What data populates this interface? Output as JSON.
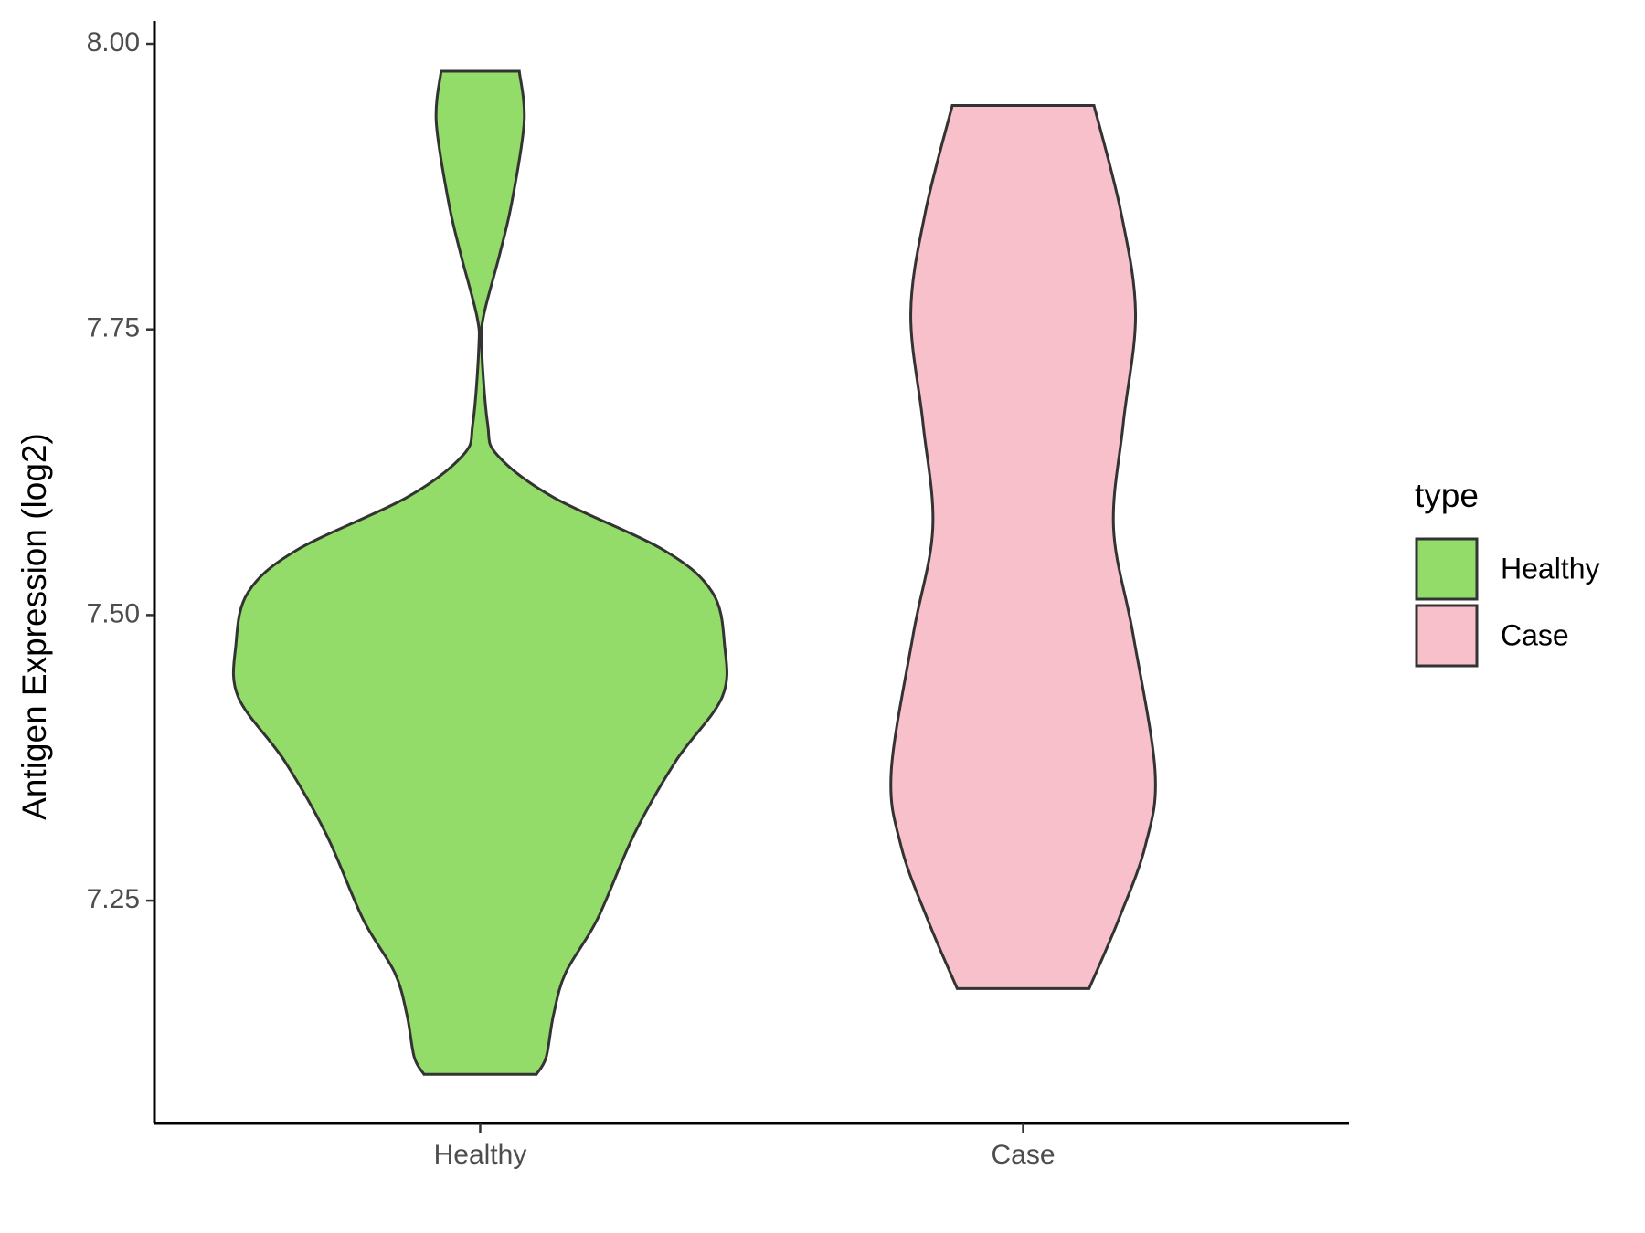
{
  "chart_data": {
    "type": "violin",
    "y_label": "Antigen Expression (log2)",
    "categories": [
      "Healthy",
      "Case"
    ],
    "legend_title": "type",
    "ylim": [
      7.055,
      8.02
    ],
    "yticks": [
      {
        "value": 8,
        "label": "8.00"
      },
      7.75,
      {
        "value": 7.5,
        "label": "7.50"
      },
      7.25
    ],
    "series": [
      {
        "name": "Healthy",
        "color": "#93dc6a",
        "y": [
          7.976,
          7.932,
          7.862,
          7.816,
          7.761,
          7.733,
          7.668,
          7.64,
          7.603,
          7.557,
          7.52,
          7.474,
          7.428,
          7.372,
          7.308,
          7.234,
          7.187,
          7.15,
          7.113,
          7.098
        ],
        "density": [
          0.16,
          0.18,
          0.13,
          0.08,
          0.013,
          0.006,
          0.03,
          0.07,
          0.3,
          0.75,
          0.95,
          1.0,
          0.99,
          0.8,
          0.63,
          0.48,
          0.35,
          0.3,
          0.27,
          0.23
        ]
      },
      {
        "name": "Case",
        "color": "#f7c0cb",
        "y": [
          7.946,
          7.853,
          7.764,
          7.668,
          7.576,
          7.483,
          7.363,
          7.298,
          7.233,
          7.173
        ],
        "density": [
          0.29,
          0.4,
          0.46,
          0.41,
          0.37,
          0.45,
          0.54,
          0.5,
          0.39,
          0.27
        ]
      }
    ]
  }
}
